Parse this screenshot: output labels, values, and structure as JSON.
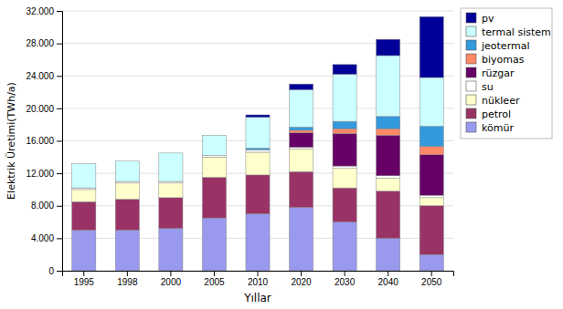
{
  "chart_data": {
    "type": "bar",
    "stacked": true,
    "categories": [
      "1995",
      "1998",
      "2000",
      "2005",
      "2010",
      "2020",
      "2030",
      "2040",
      "2050"
    ],
    "series": [
      {
        "name": "kömür",
        "color": "#9999EE",
        "values": [
          5000,
          5000,
          5200,
          6500,
          7000,
          7800,
          6000,
          4000,
          2000
        ]
      },
      {
        "name": "petrol",
        "color": "#993366",
        "values": [
          3500,
          3800,
          3800,
          5000,
          4800,
          4400,
          4200,
          5800,
          6000
        ]
      },
      {
        "name": "nükleer",
        "color": "#FFFFCC",
        "values": [
          1500,
          2000,
          1800,
          2500,
          2800,
          2800,
          2400,
          1600,
          1000
        ]
      },
      {
        "name": "su",
        "color": "#FFFFFF",
        "values": [
          200,
          200,
          200,
          200,
          300,
          200,
          300,
          300,
          300
        ]
      },
      {
        "name": "rüzgar",
        "color": "#660066",
        "values": [
          0,
          0,
          0,
          0,
          0,
          1800,
          4000,
          5000,
          5000
        ]
      },
      {
        "name": "biyomas",
        "color": "#FF8866",
        "values": [
          0,
          0,
          0,
          0,
          0,
          300,
          600,
          800,
          1000
        ]
      },
      {
        "name": "jeotermal",
        "color": "#3399DD",
        "values": [
          0,
          0,
          0,
          0,
          200,
          400,
          900,
          1500,
          2500
        ]
      },
      {
        "name": "termal sistem",
        "color": "#CCFFFF",
        "values": [
          3000,
          2500,
          3500,
          2500,
          3800,
          4600,
          5800,
          7500,
          6000
        ]
      },
      {
        "name": "pv",
        "color": "#000099",
        "values": [
          0,
          0,
          0,
          0,
          300,
          700,
          1200,
          2000,
          7500
        ]
      }
    ],
    "xlabel": "Yıllar",
    "ylabel": "Elektrik Üretimi(TWh/a)",
    "ylim": [
      0,
      32000
    ],
    "yticks": [
      0,
      {
        "value": 4000,
        "label": "4.000"
      },
      {
        "value": 8000,
        "label": "8.000"
      },
      {
        "value": 12000,
        "label": "12.000"
      },
      {
        "value": 16000,
        "label": "16.000"
      },
      {
        "value": 20000,
        "label": "20.000"
      },
      {
        "value": 24000,
        "label": "24.000"
      },
      {
        "value": 28000,
        "label": "28.000"
      },
      {
        "value": 32000,
        "label": "32.000"
      }
    ],
    "grid": true,
    "legend": "right"
  }
}
